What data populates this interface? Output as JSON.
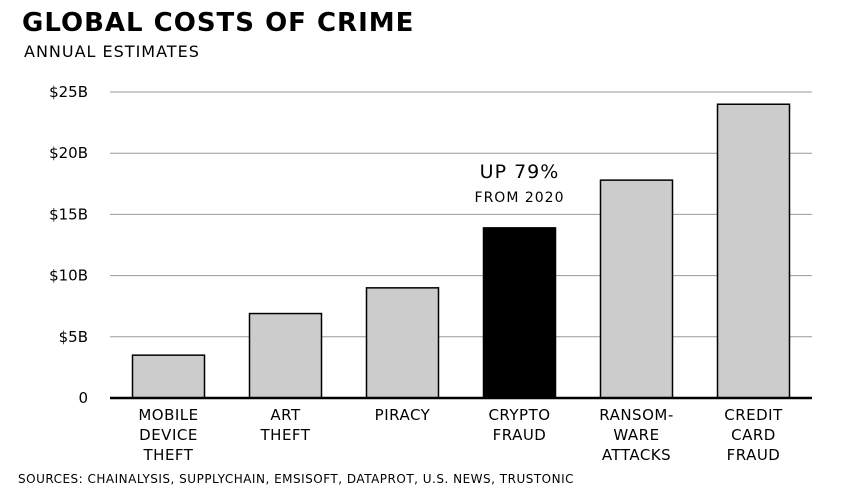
{
  "chart_data": {
    "type": "bar",
    "title": "GLOBAL COSTS OF CRIME",
    "subtitle": "ANNUAL ESTIMATES",
    "xlabel": "",
    "ylabel": "",
    "categories": [
      [
        "MOBILE",
        "DEVICE",
        "THEFT"
      ],
      [
        "ART",
        "THEFT"
      ],
      [
        "PIRACY"
      ],
      [
        "CRYPTO",
        "FRAUD"
      ],
      [
        "RANSOM-",
        "WARE",
        "ATTACKS"
      ],
      [
        "CREDIT",
        "CARD",
        "FRAUD"
      ]
    ],
    "values": [
      3.5,
      6.9,
      9,
      13.9,
      17.8,
      24
    ],
    "highlight_index": 3,
    "colors": {
      "bar": "#cccccc",
      "highlight": "#000000",
      "grid": "#999999",
      "axis": "#000000"
    },
    "ylim": [
      0,
      25
    ],
    "yticks": [
      {
        "value": 0,
        "label": "0"
      },
      {
        "value": 5,
        "label": "$5B"
      },
      {
        "value": 10,
        "label": "$10B"
      },
      {
        "value": 15,
        "label": "$15B"
      },
      {
        "value": 20,
        "label": "$20B"
      },
      {
        "value": 25,
        "label": "$25B"
      }
    ],
    "grid": true,
    "annotation": {
      "line1": "UP 79%",
      "line2": "FROM 2020"
    },
    "sources": "SOURCES: CHAINALYSIS, SUPPLYCHAIN, EMSISOFT, DATAPROT, U.S. NEWS, TRUSTONIC"
  }
}
